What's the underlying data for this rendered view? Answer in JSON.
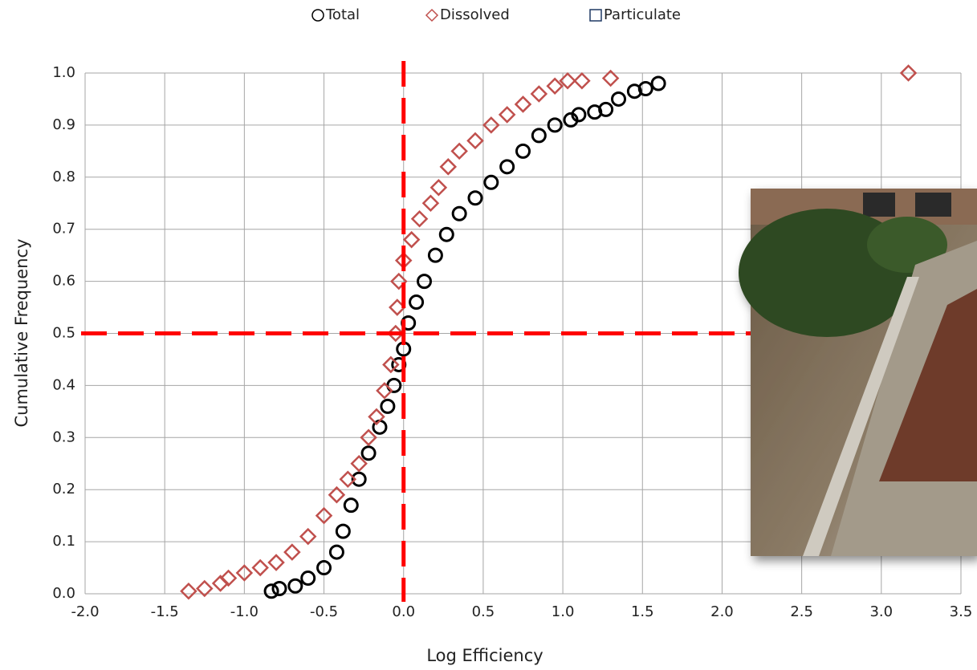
{
  "chart_data": {
    "type": "scatter",
    "x_label": "Log Efficiency",
    "y_label": "Cumulative Frequency",
    "xlim": [
      -2,
      3.5
    ],
    "ylim": [
      0,
      1
    ],
    "xticks": [
      {
        "value": -2,
        "label": "-2.0"
      },
      -1.5,
      {
        "value": -1,
        "label": "-1.0"
      },
      -0.5,
      {
        "value": 0,
        "label": "0.0"
      },
      0.5,
      {
        "value": 1,
        "label": "1.0"
      },
      1.5,
      {
        "value": 2,
        "label": "2.0"
      },
      2.5,
      {
        "value": 3,
        "label": "3.0"
      },
      3.5
    ],
    "yticks": [
      {
        "value": 0,
        "label": "0.0"
      },
      0.1,
      0.2,
      0.3,
      0.4,
      0.5,
      0.6,
      0.7,
      0.8,
      0.9,
      {
        "value": 1,
        "label": "1.0"
      }
    ],
    "grid": true,
    "reference_x": 0,
    "reference_y": 0.5,
    "reference_color": "#ff0000",
    "series": [
      {
        "name": "Total",
        "color": "#000000",
        "marker": "circle",
        "x": [
          -0.83,
          -0.78,
          -0.68,
          -0.6,
          -0.5,
          -0.42,
          -0.38,
          -0.33,
          -0.28,
          -0.22,
          -0.15,
          -0.1,
          -0.06,
          -0.03,
          0.0,
          0.03,
          0.08,
          0.13,
          0.2,
          0.27,
          0.35,
          0.45,
          0.55,
          0.65,
          0.75,
          0.85,
          0.95,
          1.05,
          1.1,
          1.2,
          1.27,
          1.35,
          1.45,
          1.52,
          1.6
        ],
        "values": [
          0.005,
          0.01,
          0.015,
          0.03,
          0.05,
          0.08,
          0.12,
          0.17,
          0.22,
          0.27,
          0.32,
          0.36,
          0.4,
          0.44,
          0.47,
          0.52,
          0.56,
          0.6,
          0.65,
          0.69,
          0.73,
          0.76,
          0.79,
          0.82,
          0.85,
          0.88,
          0.9,
          0.91,
          0.92,
          0.925,
          0.93,
          0.95,
          0.965,
          0.97,
          0.98
        ]
      },
      {
        "name": "Dissolved",
        "color": "#c0504d",
        "marker": "diamond",
        "x": [
          -1.35,
          -1.25,
          -1.15,
          -1.1,
          -1.0,
          -0.9,
          -0.8,
          -0.7,
          -0.6,
          -0.5,
          -0.42,
          -0.35,
          -0.28,
          -0.22,
          -0.17,
          -0.12,
          -0.08,
          -0.05,
          -0.04,
          -0.03,
          0.0,
          0.05,
          0.1,
          0.17,
          0.22,
          0.28,
          0.35,
          0.45,
          0.55,
          0.65,
          0.75,
          0.85,
          0.95,
          1.03,
          1.12,
          1.3,
          3.17
        ],
        "values": [
          0.005,
          0.01,
          0.02,
          0.03,
          0.04,
          0.05,
          0.06,
          0.08,
          0.11,
          0.15,
          0.19,
          0.22,
          0.25,
          0.3,
          0.34,
          0.39,
          0.44,
          0.5,
          0.55,
          0.6,
          0.64,
          0.68,
          0.72,
          0.75,
          0.78,
          0.82,
          0.85,
          0.87,
          0.9,
          0.92,
          0.94,
          0.96,
          0.975,
          0.985,
          0.985,
          0.99,
          1.0
        ]
      },
      {
        "name": "Particulate",
        "color": "#1f3864",
        "marker": "square",
        "x": [],
        "values": []
      }
    ]
  }
}
